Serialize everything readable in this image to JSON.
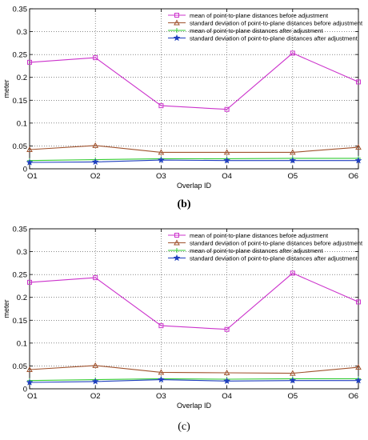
{
  "chart_data": [
    {
      "type": "line",
      "caption": "(b)",
      "categories": [
        "O1",
        "O2",
        "O3",
        "O4",
        "O5",
        "O6"
      ],
      "xlabel": "Overlap ID",
      "ylabel": "meter",
      "ylim": [
        0,
        0.35
      ],
      "yticks": [
        "0",
        "0.05",
        "0.1",
        "0.15",
        "0.2",
        "0.25",
        "0.3",
        "0.35"
      ],
      "grid": true,
      "legend_position": "top-right",
      "series": [
        {
          "name": "mean of point-to-plane distances before adjustment",
          "color": "#cc33cc",
          "marker": "square",
          "values": [
            0.233,
            0.243,
            0.138,
            0.13,
            0.253,
            0.19
          ]
        },
        {
          "name": "standard deviation of point-to-plane distances before adjustment",
          "color": "#a0522d",
          "marker": "triangle",
          "values": [
            0.042,
            0.051,
            0.036,
            0.036,
            0.036,
            0.047
          ]
        },
        {
          "name": "mean of point-to-plane distances after adjustment",
          "color": "#33cc33",
          "marker": "plus",
          "values": [
            0.018,
            0.02,
            0.022,
            0.022,
            0.023,
            0.023
          ]
        },
        {
          "name": "standard deviation of point-to-plane distances after adjustment",
          "color": "#1f3fbf",
          "marker": "star",
          "values": [
            0.014,
            0.015,
            0.019,
            0.018,
            0.018,
            0.018
          ]
        }
      ]
    },
    {
      "type": "line",
      "caption": "(c)",
      "categories": [
        "O1",
        "O2",
        "O3",
        "O4",
        "O5",
        "O6"
      ],
      "xlabel": "Overlap ID",
      "ylabel": "meter",
      "ylim": [
        0,
        0.35
      ],
      "yticks": [
        "0",
        "0.05",
        "0.1",
        "0.15",
        "0.2",
        "0.25",
        "0.3",
        "0.35"
      ],
      "grid": true,
      "legend_position": "top-right",
      "series": [
        {
          "name": "mean of point-to-plane distances before adjustment",
          "color": "#cc33cc",
          "marker": "square",
          "values": [
            0.233,
            0.243,
            0.138,
            0.13,
            0.253,
            0.19
          ]
        },
        {
          "name": "standard deviation of point-to-plane distances before adjustment",
          "color": "#a0522d",
          "marker": "triangle",
          "values": [
            0.042,
            0.051,
            0.036,
            0.035,
            0.034,
            0.047
          ]
        },
        {
          "name": "mean of point-to-plane distances after adjustment",
          "color": "#33cc33",
          "marker": "plus",
          "values": [
            0.018,
            0.02,
            0.022,
            0.021,
            0.022,
            0.022
          ]
        },
        {
          "name": "standard deviation of point-to-plane distances after adjustment",
          "color": "#1f3fbf",
          "marker": "star",
          "values": [
            0.014,
            0.016,
            0.02,
            0.017,
            0.018,
            0.018
          ]
        }
      ]
    }
  ]
}
